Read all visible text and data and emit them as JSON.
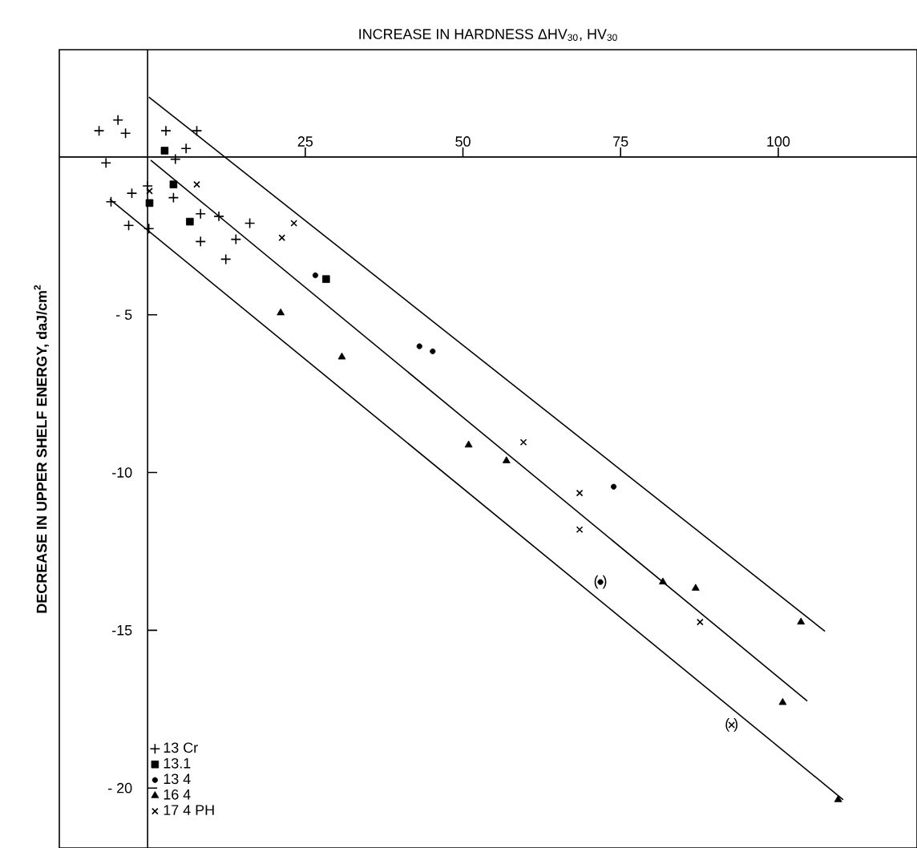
{
  "chart_data": {
    "type": "scatter",
    "xlabel": "INCREASE IN HARDNESS ΔHV$_{30}$, HV$_{30}$",
    "ylabel": "DECREASE IN UPPER SHELF ENERGY, daJ/cm$^{2}$",
    "xlim": [
      -14,
      122
    ],
    "ylim": [
      -21.9,
      3.4
    ],
    "xticks": [
      25,
      50,
      75,
      100
    ],
    "yticks": [
      {
        "value": -5,
        "label": "- 5"
      },
      -10,
      -15,
      {
        "value": -20,
        "label": "- 20"
      }
    ],
    "legend": "bottom left",
    "grid": false,
    "series": [
      {
        "name": "13 Cr",
        "marker": "plus",
        "color": "#000000",
        "x": [
          -7.7,
          -4.7,
          -3.5,
          2.9,
          7.8,
          6.1,
          4.4,
          -6.6,
          0,
          -2.5,
          -5.8,
          -3.0,
          0.2,
          4.1,
          8.4,
          11.3,
          16.2,
          14.0,
          8.4,
          12.4
        ],
        "values": [
          0.83,
          1.17,
          0.75,
          0.83,
          0.83,
          0.27,
          -0.07,
          -0.19,
          -0.92,
          -1.15,
          -1.42,
          -2.17,
          -2.27,
          -1.29,
          -1.8,
          -1.88,
          -2.1,
          -2.61,
          -2.68,
          -3.24
        ]
      },
      {
        "name": "13.1",
        "marker": "square",
        "color": "#000000",
        "x": [
          2.7,
          4.1,
          0.3,
          6.7,
          28.3
        ],
        "values": [
          0.2,
          -0.87,
          -1.46,
          -2.05,
          -3.87
        ]
      },
      {
        "name": "13 4",
        "marker": "circle",
        "color": "#000000",
        "x": [
          26.6,
          43.1,
          45.2,
          73.9,
          71.8
        ],
        "values": [
          -3.75,
          -6.0,
          -6.16,
          -10.45,
          -13.47
        ]
      },
      {
        "name": "16 4",
        "marker": "triangle",
        "color": "#000000",
        "x": [
          21.1,
          30.8,
          50.9,
          56.9,
          81.7,
          86.9,
          103.6,
          100.7,
          109.5
        ],
        "values": [
          -4.94,
          -6.34,
          -9.13,
          -9.63,
          -13.47,
          -13.67,
          -14.74,
          -17.29,
          -20.37
        ]
      },
      {
        "name": "17 4 PH",
        "marker": "cross",
        "color": "#000000",
        "x": [
          7.8,
          23.2,
          21.3,
          0.3,
          59.6,
          68.5,
          68.5,
          87.6,
          92.6
        ],
        "values": [
          -0.87,
          -2.1,
          -2.56,
          -1.08,
          -9.04,
          -10.65,
          -11.81,
          -14.74,
          -18.0
        ]
      },
      {
        "type": "line",
        "marker": "none",
        "color": "#000000",
        "x": [
          0.2,
          107.4
        ],
        "values": [
          1.9,
          -15.03
        ]
      },
      {
        "type": "line",
        "marker": "none",
        "color": "#000000",
        "x": [
          0.5,
          104.6
        ],
        "values": [
          -0.1,
          -17.24
        ]
      },
      {
        "type": "line",
        "marker": "none",
        "color": "#000000",
        "x": [
          -6.0,
          110.3
        ],
        "values": [
          -1.34,
          -20.37
        ]
      }
    ],
    "annotations": [
      {
        "text": "(  )",
        "x": 71.8,
        "y": -13.47
      },
      {
        "text": "(  )",
        "x": 92.6,
        "y": -18.0
      }
    ]
  }
}
